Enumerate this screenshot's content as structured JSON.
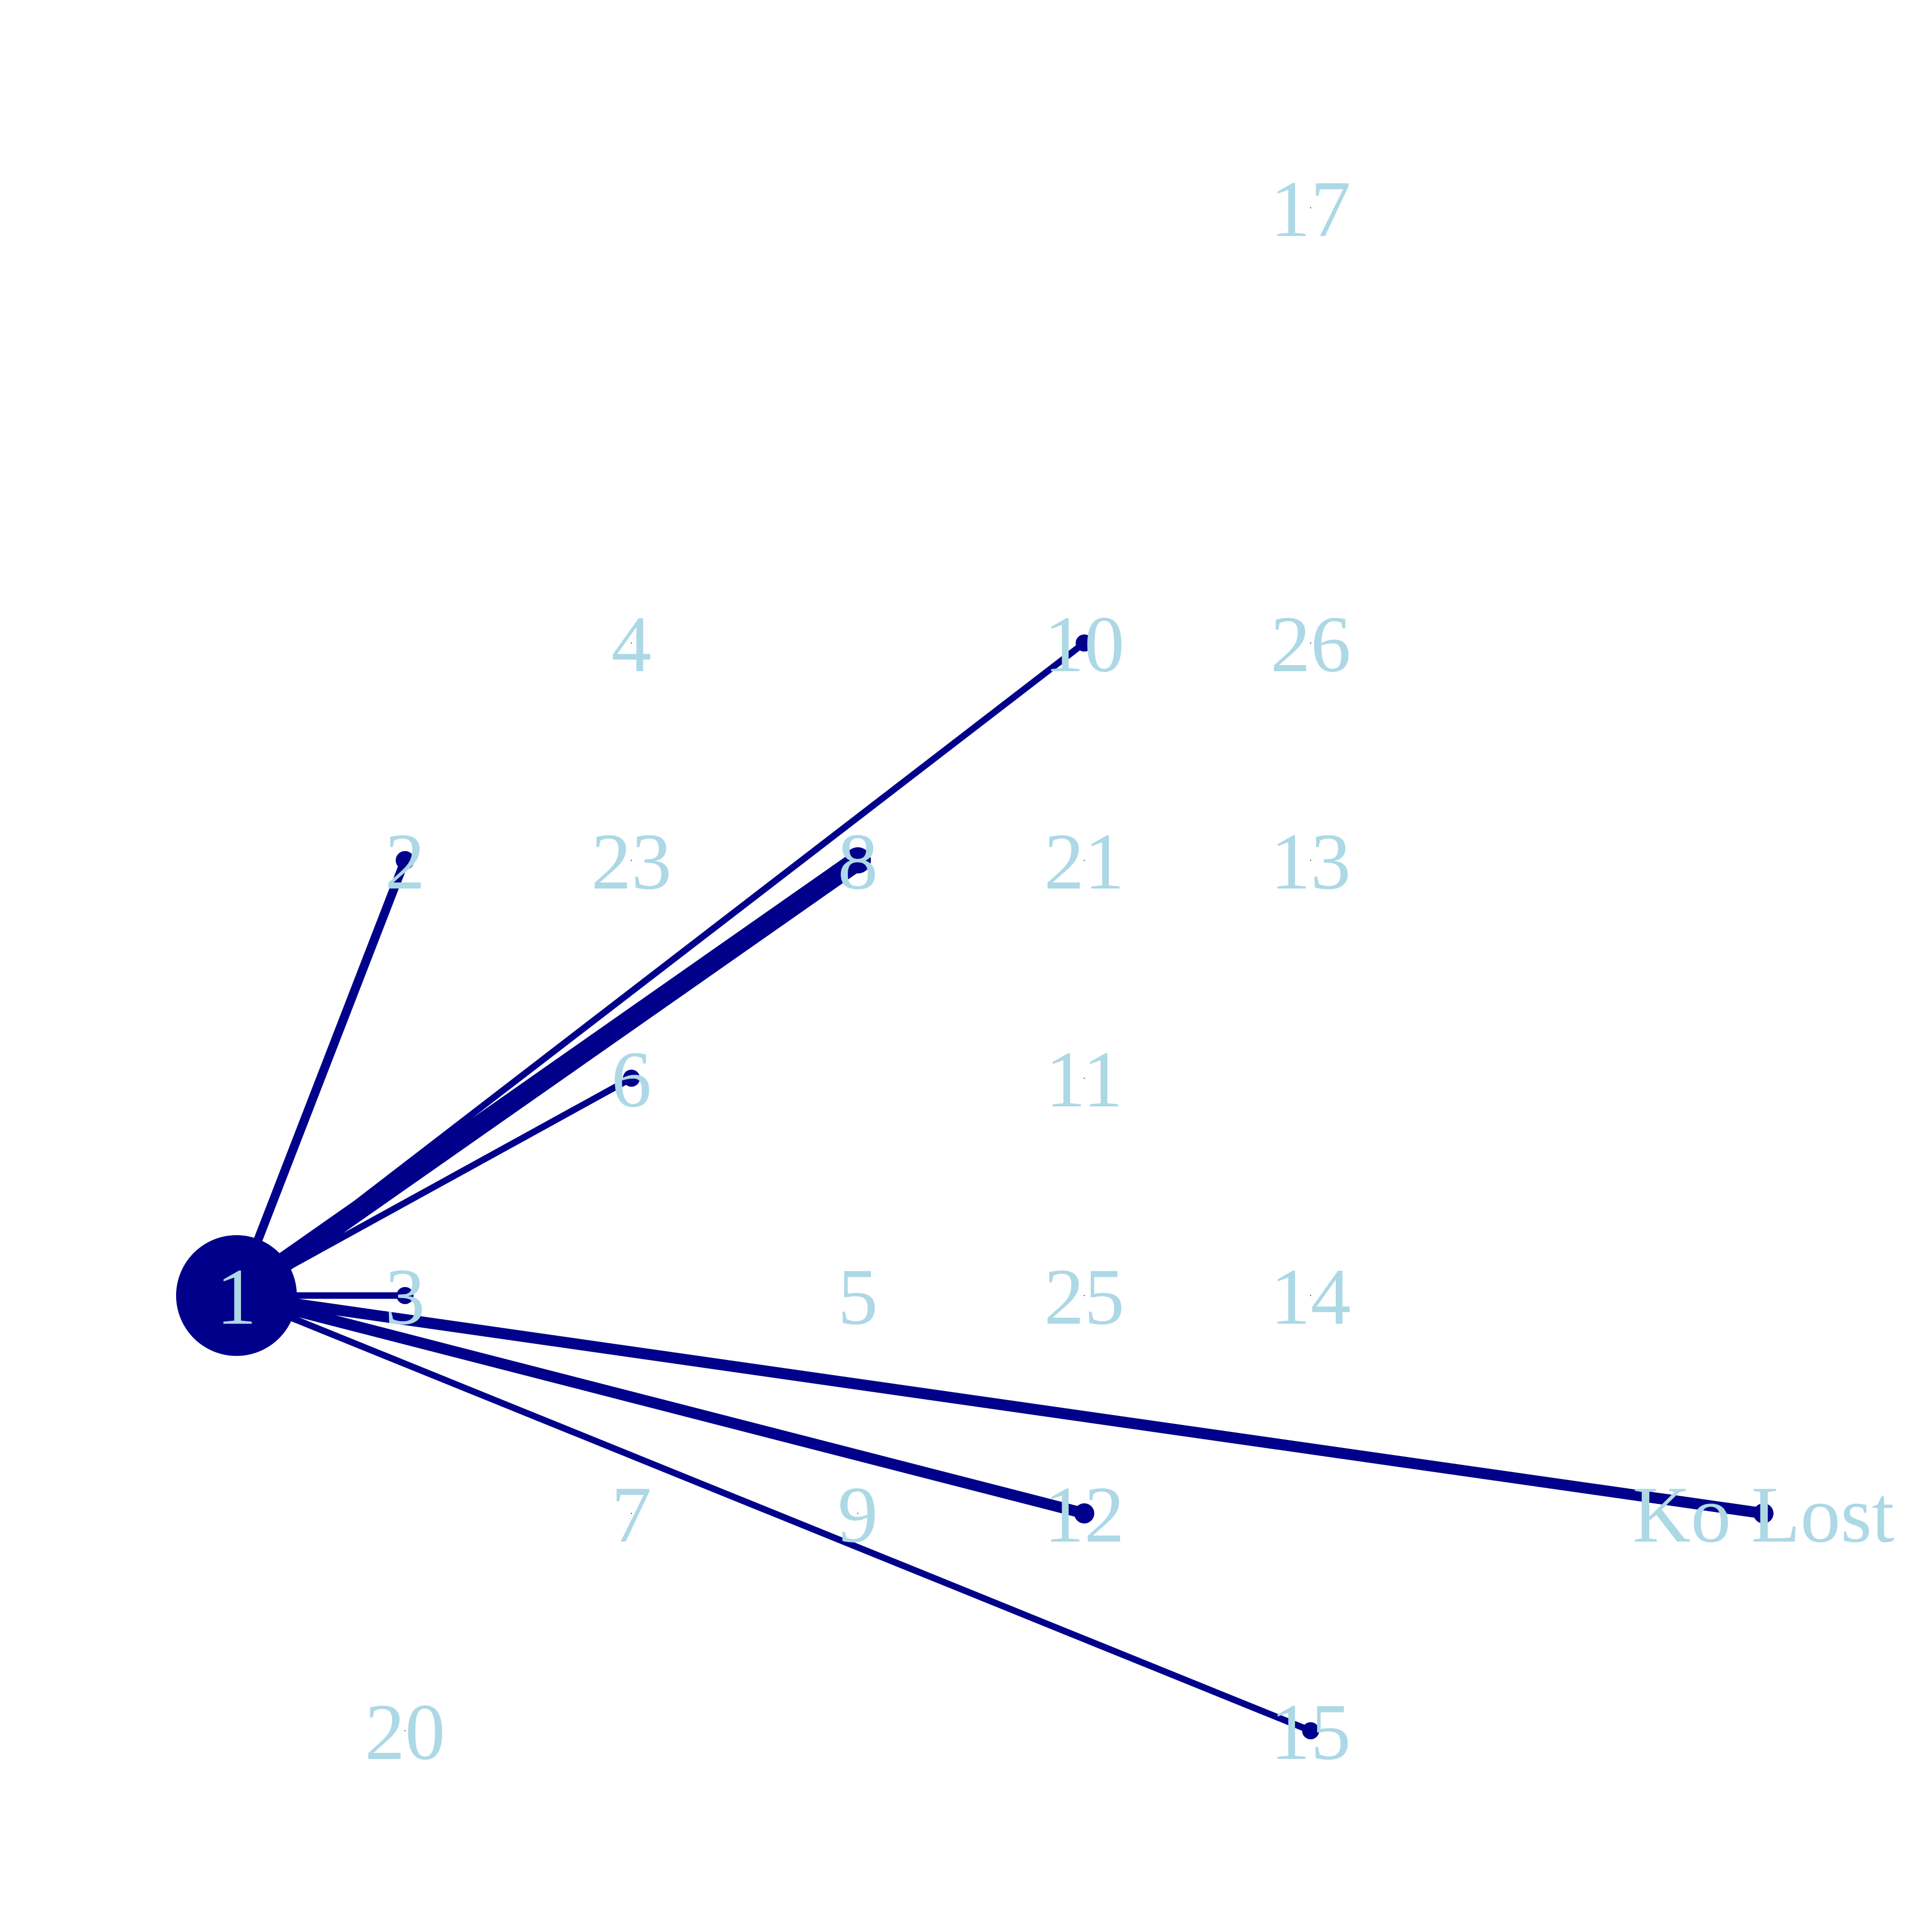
{
  "colors": {
    "edge": "#00008b",
    "node": "#00008b",
    "label": "#add8e6",
    "background": "#ffffff"
  },
  "graph": {
    "center": "1",
    "nodes": [
      {
        "id": "1",
        "label": "1",
        "hub": true
      },
      {
        "id": "2",
        "label": "2"
      },
      {
        "id": "3",
        "label": "3"
      },
      {
        "id": "4",
        "label": "4"
      },
      {
        "id": "5",
        "label": "5"
      },
      {
        "id": "6",
        "label": "6"
      },
      {
        "id": "7",
        "label": "7"
      },
      {
        "id": "8",
        "label": "8"
      },
      {
        "id": "9",
        "label": "9"
      },
      {
        "id": "10",
        "label": "10"
      },
      {
        "id": "11",
        "label": "11"
      },
      {
        "id": "12",
        "label": "12"
      },
      {
        "id": "13",
        "label": "13"
      },
      {
        "id": "14",
        "label": "14"
      },
      {
        "id": "15",
        "label": "15"
      },
      {
        "id": "17",
        "label": "17"
      },
      {
        "id": "20",
        "label": "20"
      },
      {
        "id": "21",
        "label": "21"
      },
      {
        "id": "23",
        "label": "23"
      },
      {
        "id": "25",
        "label": "25"
      },
      {
        "id": "26",
        "label": "26"
      },
      {
        "id": "ko-lost",
        "label": "Ko Lost"
      }
    ],
    "edges": [
      {
        "source": "1",
        "target": "2",
        "weight": 3
      },
      {
        "source": "1",
        "target": "3",
        "weight": 2
      },
      {
        "source": "1",
        "target": "6",
        "weight": 2
      },
      {
        "source": "1",
        "target": "8",
        "weight": 8
      },
      {
        "source": "1",
        "target": "10",
        "weight": 2
      },
      {
        "source": "1",
        "target": "12",
        "weight": 4
      },
      {
        "source": "1",
        "target": "15",
        "weight": 2
      },
      {
        "source": "1",
        "target": "ko-lost",
        "weight": 4
      }
    ]
  }
}
